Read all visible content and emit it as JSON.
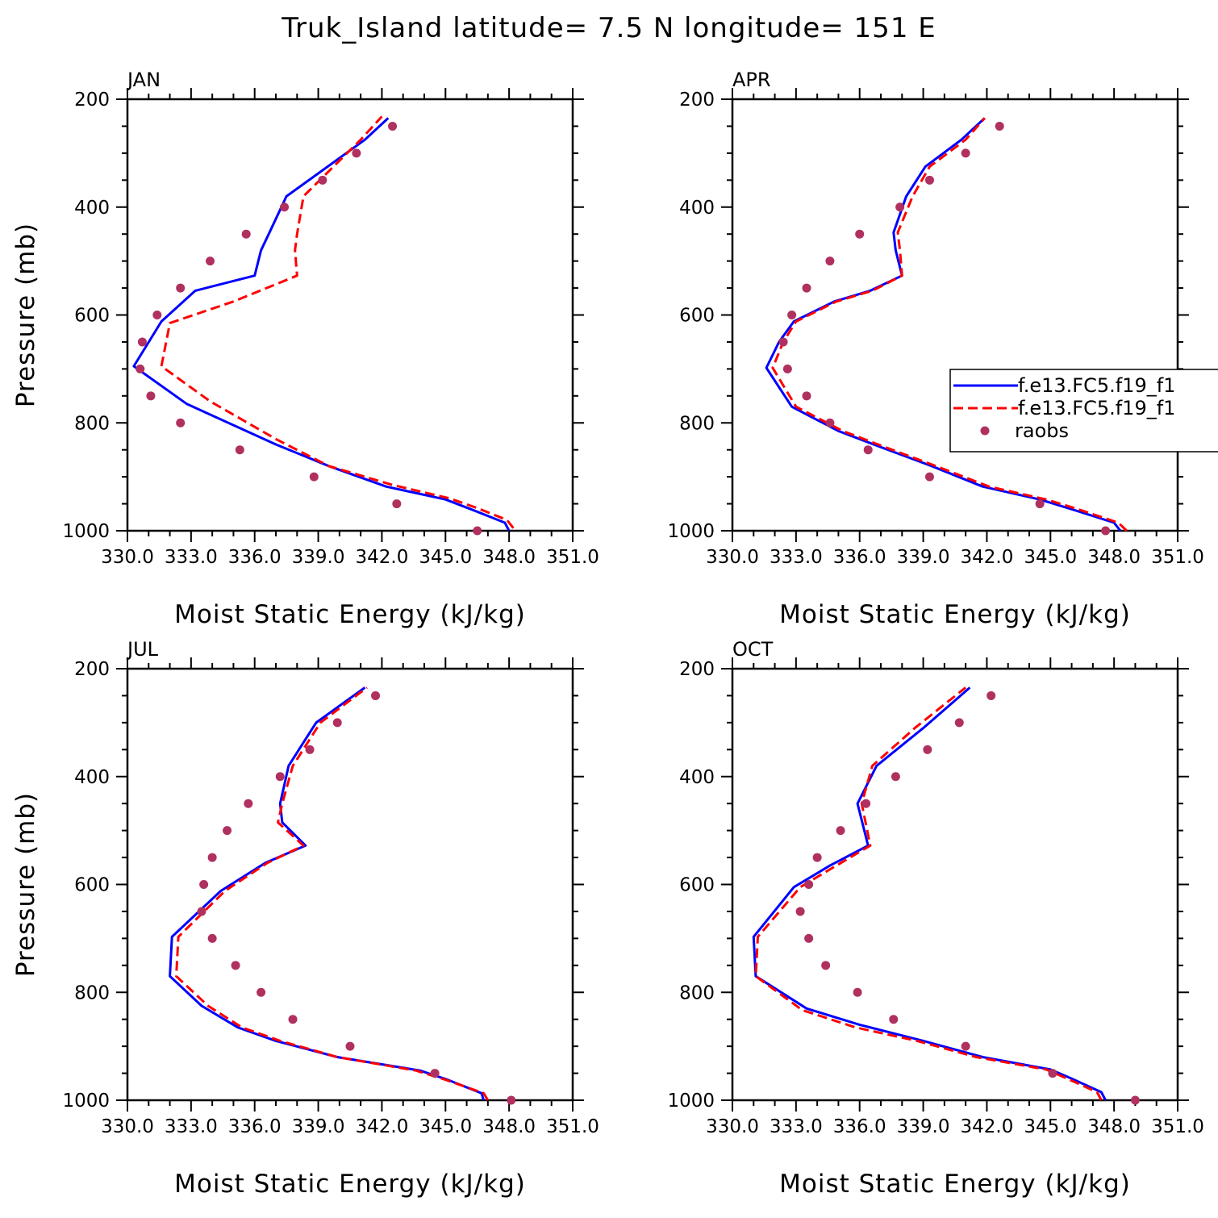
{
  "figure": {
    "title": "Truk_Island  latitude= 7.5 N longitude= 151 E"
  },
  "colors": {
    "model_1": "#0000ff",
    "model_2": "#ff0000",
    "raobs": "#b03060",
    "axes": "#000000"
  },
  "legend": {
    "placement": "right of APR panel, clipped at figure edge",
    "entries": [
      {
        "label": "f.e13.FC5.f19_f1",
        "style": "solid",
        "color": "#0000ff"
      },
      {
        "label": "f.e13.FC5.f19_f1",
        "style": "dashed",
        "color": "#ff0000"
      },
      {
        "label": "raobs",
        "style": "dot",
        "color": "#b03060"
      }
    ]
  },
  "chart_data": [
    {
      "type": "line",
      "title": "JAN",
      "xlabel": "Moist Static Energy (kJ/kg)",
      "ylabel": "Pressure (mb)",
      "xlim": [
        330.0,
        351.0
      ],
      "ylim": [
        1000,
        200
      ],
      "xticks": [
        330.0,
        333.0,
        336.0,
        339.0,
        342.0,
        345.0,
        348.0,
        351.0
      ],
      "xtick_labels": [
        "330.0",
        "333.0",
        "336.0",
        "339.0",
        "342.0",
        "345.0",
        "348.0",
        "351.0"
      ],
      "yticks": [
        200,
        400,
        600,
        800,
        1000
      ],
      "ytick_labels": [
        "200",
        "400",
        "600",
        "800",
        "1000"
      ],
      "series": [
        {
          "style": "solid",
          "color": "#0000ff",
          "x": [
            348.0,
            347.8,
            346.2,
            345.0,
            342.2,
            339.5,
            337.0,
            332.8,
            330.3,
            331.6,
            333.2,
            336.0,
            336.3,
            336.7,
            337.5,
            341.2,
            342.3
          ],
          "y": [
            1000,
            985,
            960,
            942,
            918,
            880,
            840,
            765,
            695,
            612,
            555,
            527,
            480,
            447,
            380,
            275,
            235
          ]
        },
        {
          "style": "dashed",
          "color": "#ff0000",
          "x": [
            348.2,
            347.9,
            346.5,
            345.2,
            342.5,
            339.5,
            337.0,
            333.9,
            331.6,
            332.0,
            335.0,
            338.0,
            337.9,
            338.0,
            338.3,
            341.0,
            342.0
          ],
          "y": [
            995,
            980,
            958,
            940,
            915,
            880,
            830,
            760,
            695,
            615,
            575,
            527,
            480,
            450,
            380,
            275,
            232
          ]
        }
      ],
      "points": {
        "name": "raobs",
        "x": [
          346.5,
          342.7,
          338.8,
          335.3,
          332.5,
          331.1,
          330.6,
          330.7,
          331.4,
          332.5,
          333.9,
          335.6,
          337.4,
          339.2,
          340.8,
          342.5
        ],
        "y": [
          1000,
          950,
          900,
          850,
          800,
          750,
          700,
          650,
          600,
          550,
          500,
          450,
          400,
          350,
          300,
          250
        ]
      }
    },
    {
      "type": "line",
      "title": "APR",
      "xlabel": "Moist Static Energy (kJ/kg)",
      "ylabel": "",
      "xlim": [
        330.0,
        351.0
      ],
      "ylim": [
        1000,
        200
      ],
      "xticks": [
        330.0,
        333.0,
        336.0,
        339.0,
        342.0,
        345.0,
        348.0,
        351.0
      ],
      "xtick_labels": [
        "330.0",
        "333.0",
        "336.0",
        "339.0",
        "342.0",
        "345.0",
        "348.0",
        "351.0"
      ],
      "yticks": [
        200,
        400,
        600,
        800,
        1000
      ],
      "ytick_labels": [
        "200",
        "400",
        "600",
        "800",
        "1000"
      ],
      "series": [
        {
          "style": "solid",
          "color": "#0000ff",
          "x": [
            348.3,
            348.0,
            346.0,
            344.5,
            341.8,
            339.4,
            337.0,
            335.0,
            332.8,
            331.6,
            332.2,
            332.9,
            334.8,
            336.5,
            338.0,
            337.7,
            337.6,
            338.2,
            339.1,
            340.8,
            341.9
          ],
          "y": [
            1000,
            985,
            960,
            942,
            918,
            880,
            845,
            815,
            770,
            698,
            650,
            612,
            575,
            555,
            527,
            480,
            447,
            380,
            325,
            275,
            235
          ]
        },
        {
          "style": "dashed",
          "color": "#ff0000",
          "x": [
            348.6,
            348.2,
            346.3,
            344.8,
            342.1,
            339.6,
            337.2,
            335.2,
            333.0,
            331.9,
            332.4,
            333.0,
            334.9,
            336.6,
            338.0,
            337.9,
            337.8,
            338.5,
            339.3,
            341.0,
            341.9
          ],
          "y": [
            1000,
            985,
            960,
            942,
            918,
            880,
            845,
            815,
            770,
            698,
            650,
            612,
            575,
            555,
            527,
            480,
            447,
            380,
            325,
            275,
            235
          ]
        }
      ],
      "points": {
        "name": "raobs",
        "x": [
          347.6,
          344.5,
          339.3,
          336.4,
          334.6,
          333.5,
          332.6,
          332.4,
          332.8,
          333.5,
          334.6,
          336.0,
          337.9,
          339.3,
          341.0,
          342.6
        ],
        "y": [
          1000,
          950,
          900,
          850,
          800,
          750,
          700,
          650,
          600,
          550,
          500,
          450,
          400,
          350,
          300,
          250
        ]
      }
    },
    {
      "type": "line",
      "title": "JUL",
      "xlabel": "Moist Static Energy (kJ/kg)",
      "ylabel": "Pressure (mb)",
      "xlim": [
        330.0,
        351.0
      ],
      "ylim": [
        1000,
        200
      ],
      "xticks": [
        330.0,
        333.0,
        336.0,
        339.0,
        342.0,
        345.0,
        348.0,
        351.0
      ],
      "xtick_labels": [
        "330.0",
        "333.0",
        "336.0",
        "339.0",
        "342.0",
        "345.0",
        "348.0",
        "351.0"
      ],
      "yticks": [
        200,
        400,
        600,
        800,
        1000
      ],
      "ytick_labels": [
        "200",
        "400",
        "600",
        "800",
        "1000"
      ],
      "series": [
        {
          "style": "solid",
          "color": "#0000ff",
          "x": [
            346.8,
            346.7,
            345.1,
            343.8,
            339.9,
            337.0,
            335.2,
            333.5,
            332.0,
            332.1,
            334.4,
            336.5,
            338.4,
            337.3,
            337.2,
            337.6,
            338.9,
            341.2
          ],
          "y": [
            1000,
            987,
            962,
            945,
            920,
            890,
            865,
            825,
            770,
            697,
            612,
            560,
            528,
            485,
            450,
            380,
            300,
            235
          ]
        },
        {
          "style": "dashed",
          "color": "#ff0000",
          "x": [
            347.0,
            346.8,
            345.0,
            343.6,
            339.9,
            337.2,
            335.4,
            333.8,
            332.3,
            332.4,
            334.6,
            336.6,
            338.3,
            337.1,
            337.3,
            337.8,
            339.1,
            341.3
          ],
          "y": [
            1000,
            987,
            962,
            945,
            920,
            890,
            865,
            825,
            770,
            697,
            612,
            560,
            528,
            485,
            450,
            380,
            300,
            235
          ]
        }
      ],
      "points": {
        "name": "raobs",
        "x": [
          348.1,
          344.5,
          340.5,
          337.8,
          336.3,
          335.1,
          334.0,
          333.5,
          333.6,
          334.0,
          334.7,
          335.7,
          337.2,
          338.6,
          339.9,
          341.7
        ],
        "y": [
          1000,
          950,
          900,
          850,
          800,
          750,
          700,
          650,
          600,
          550,
          500,
          450,
          400,
          350,
          300,
          250
        ]
      }
    },
    {
      "type": "line",
      "title": "OCT",
      "xlabel": "Moist Static Energy (kJ/kg)",
      "ylabel": "",
      "xlim": [
        330.0,
        351.0
      ],
      "ylim": [
        1000,
        200
      ],
      "xticks": [
        330.0,
        333.0,
        336.0,
        339.0,
        342.0,
        345.0,
        348.0,
        351.0
      ],
      "xtick_labels": [
        "330.0",
        "333.0",
        "336.0",
        "339.0",
        "342.0",
        "345.0",
        "348.0",
        "351.0"
      ],
      "yticks": [
        200,
        400,
        600,
        800,
        1000
      ],
      "ytick_labels": [
        "200",
        "400",
        "600",
        "800",
        "1000"
      ],
      "series": [
        {
          "style": "solid",
          "color": "#0000ff",
          "x": [
            347.6,
            347.4,
            346.0,
            345.0,
            341.8,
            339.0,
            336.0,
            333.5,
            331.1,
            331.0,
            332.9,
            334.6,
            336.4,
            335.9,
            336.8,
            339.0,
            341.2
          ],
          "y": [
            1000,
            985,
            960,
            943,
            920,
            890,
            860,
            830,
            770,
            697,
            605,
            565,
            528,
            450,
            380,
            310,
            235
          ]
        },
        {
          "style": "dashed",
          "color": "#ff0000",
          "x": [
            347.4,
            347.2,
            345.8,
            344.8,
            341.5,
            338.7,
            335.8,
            333.3,
            331.1,
            331.2,
            333.2,
            334.9,
            336.5,
            336.1,
            336.6,
            338.6,
            341.0
          ],
          "y": [
            1000,
            985,
            960,
            943,
            920,
            890,
            865,
            833,
            770,
            697,
            605,
            565,
            528,
            450,
            380,
            310,
            235
          ]
        }
      ],
      "points": {
        "name": "raobs",
        "x": [
          349.0,
          345.1,
          341.0,
          337.6,
          335.9,
          334.4,
          333.6,
          333.2,
          333.6,
          334.0,
          335.1,
          336.3,
          337.7,
          339.2,
          340.7,
          342.2
        ],
        "y": [
          1000,
          950,
          900,
          850,
          800,
          750,
          700,
          650,
          600,
          550,
          500,
          450,
          400,
          350,
          300,
          250
        ]
      }
    }
  ]
}
